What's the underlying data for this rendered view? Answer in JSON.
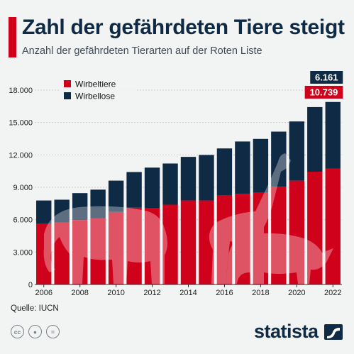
{
  "header": {
    "title": "Zahl der gefährdeten Tiere steigt",
    "subtitle": "Anzahl der gefährdeten Tierarten auf der Roten Liste"
  },
  "footer": {
    "source": "Quelle: IUCN",
    "brand": "statista",
    "license_icons": [
      "cc-icon",
      "by-icon",
      "nd-icon"
    ]
  },
  "colors": {
    "vertebrates": "#d0021b",
    "invertebrates": "#0f2a44",
    "accent": "#d0021b"
  },
  "chart_data": {
    "type": "bar",
    "stacked": true,
    "x": [
      2006,
      2007,
      2008,
      2009,
      2010,
      2011,
      2012,
      2013,
      2014,
      2015,
      2016,
      2017,
      2018,
      2019,
      2020,
      2021,
      2022
    ],
    "series": [
      {
        "name": "Wirbeltiere",
        "values": [
          5624,
          5742,
          5966,
          6143,
          6714,
          7108,
          7050,
          7390,
          7781,
          7781,
          8227,
          8402,
          8501,
          9056,
          9616,
          10443,
          10739
        ]
      },
      {
        "name": "Wirbellose",
        "values": [
          2154,
          2108,
          2496,
          2639,
          2904,
          3305,
          3772,
          3812,
          4036,
          4212,
          4371,
          4839,
          4981,
          5100,
          5480,
          5985,
          6161
        ]
      }
    ],
    "ylim": [
      0,
      18000
    ],
    "yticks": [
      "0",
      "3.000",
      "6.000",
      "9.000",
      "12.000",
      "15.000",
      "18.000"
    ],
    "xticks": [
      "2006",
      "2008",
      "2010",
      "2012",
      "2014",
      "2016",
      "2018",
      "2020",
      "2022"
    ],
    "annotations": [
      {
        "series": "Wirbellose",
        "x": 2022,
        "label": "6.161"
      },
      {
        "series": "Wirbeltiere",
        "x": 2022,
        "label": "10.739"
      }
    ],
    "legend": {
      "position": "top-left",
      "entries": [
        "Wirbeltiere",
        "Wirbellose"
      ]
    },
    "grid": true
  }
}
